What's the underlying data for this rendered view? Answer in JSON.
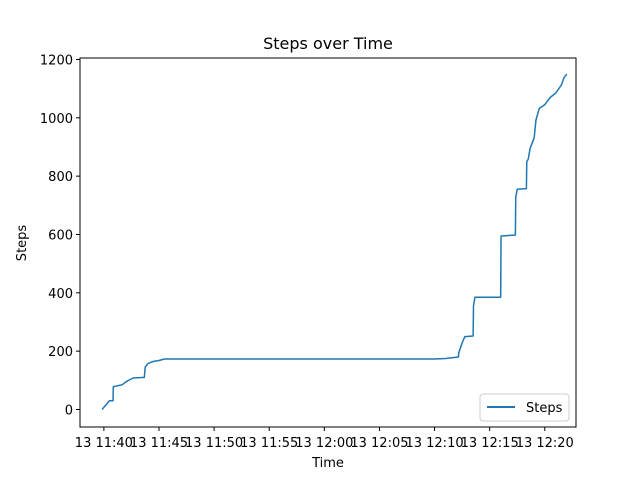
{
  "chart_data": {
    "type": "line",
    "title": "Steps over Time",
    "xlabel": "Time",
    "ylabel": "Steps",
    "x_ticks": [
      {
        "t": "11:40",
        "label": "13 11:40"
      },
      {
        "t": "11:45",
        "label": "13 11:45"
      },
      {
        "t": "11:50",
        "label": "13 11:50"
      },
      {
        "t": "11:55",
        "label": "13 11:55"
      },
      {
        "t": "12:00",
        "label": "13 12:00"
      },
      {
        "t": "12:05",
        "label": "13 12:05"
      },
      {
        "t": "12:10",
        "label": "13 12:10"
      },
      {
        "t": "12:15",
        "label": "13 12:15"
      },
      {
        "t": "12:20",
        "label": "13 12:20"
      }
    ],
    "y_ticks": [
      0,
      200,
      400,
      600,
      800,
      1000,
      1200
    ],
    "xlim": [
      "11:37:50",
      "12:22:50"
    ],
    "ylim": [
      -60,
      1205
    ],
    "grid": false,
    "legend_position": "lower right",
    "series": [
      {
        "name": "Steps",
        "color": "#1f77b4",
        "x": [
          "11:39:50",
          "11:40:10",
          "11:40:30",
          "11:40:50",
          "11:40:51",
          "11:41:40",
          "11:42:00",
          "11:42:20",
          "11:42:40",
          "11:43:40",
          "11:43:45",
          "11:44:00",
          "11:44:30",
          "11:45:00",
          "11:45:30",
          "11:46:00",
          "11:50:00",
          "11:55:00",
          "12:00:00",
          "12:05:00",
          "12:09:30",
          "12:10:00",
          "12:11:00",
          "12:12:10",
          "12:12:12",
          "12:12:30",
          "12:12:45",
          "12:13:30",
          "12:13:32",
          "12:13:40",
          "12:16:00",
          "12:16:02",
          "12:17:20",
          "12:17:22",
          "12:17:30",
          "12:18:20",
          "12:18:22",
          "12:18:30",
          "12:18:40",
          "12:19:00",
          "12:19:02",
          "12:19:12",
          "12:19:30",
          "12:20:00",
          "12:20:30",
          "12:21:00",
          "12:21:30",
          "12:21:45",
          "12:22:00"
        ],
        "y": [
          0,
          15,
          30,
          30,
          78,
          85,
          95,
          102,
          108,
          110,
          145,
          158,
          165,
          168,
          173,
          173,
          173,
          173,
          173,
          173,
          173,
          173,
          175,
          180,
          195,
          228,
          250,
          252,
          355,
          385,
          385,
          595,
          598,
          728,
          755,
          757,
          850,
          858,
          895,
          928,
          930,
          992,
          1032,
          1045,
          1070,
          1085,
          1112,
          1138,
          1150
        ]
      }
    ]
  }
}
